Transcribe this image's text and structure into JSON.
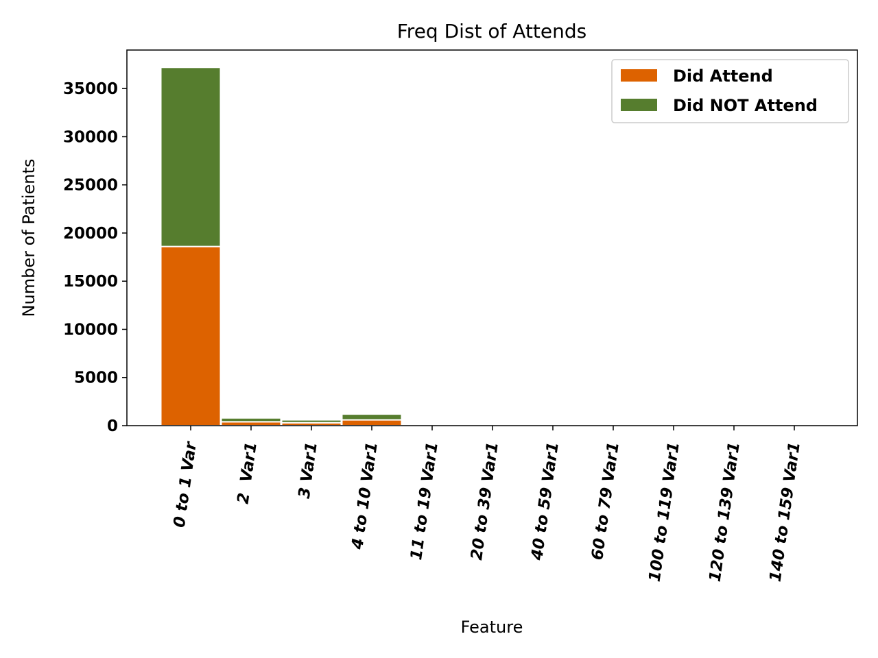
{
  "chart_data": {
    "type": "bar",
    "stacked": true,
    "title": "Freq Dist of Attends",
    "xlabel": "Feature",
    "ylabel": "Number of Patients",
    "categories": [
      "0 to 1 Var",
      "2  Var1",
      "3 Var1",
      "4 to 10 Var1",
      "11 to 19 Var1",
      "20 to 39 Var1",
      "40 to 59 Var1",
      "60 to 79 Var1",
      "100 to 119 Var1",
      "120 to 139 Var1",
      "140 to 159 Var1"
    ],
    "series": [
      {
        "name": "Did Attend",
        "color": "#dd6200",
        "values": [
          18600,
          400,
          300,
          600,
          5,
          3,
          2,
          1,
          1,
          1,
          1
        ]
      },
      {
        "name": "Did NOT Attend",
        "color": "#567d2e",
        "values": [
          18600,
          400,
          300,
          600,
          5,
          3,
          2,
          1,
          1,
          1,
          1
        ]
      }
    ],
    "ylim": [
      0,
      39000
    ],
    "yticks": [
      "0",
      "5000",
      "10000",
      "15000",
      "20000",
      "25000",
      "30000",
      "35000"
    ],
    "yticks_values": [
      0,
      5000,
      10000,
      15000,
      20000,
      25000,
      30000,
      35000
    ],
    "grid": false,
    "legend_position": "top-right"
  }
}
